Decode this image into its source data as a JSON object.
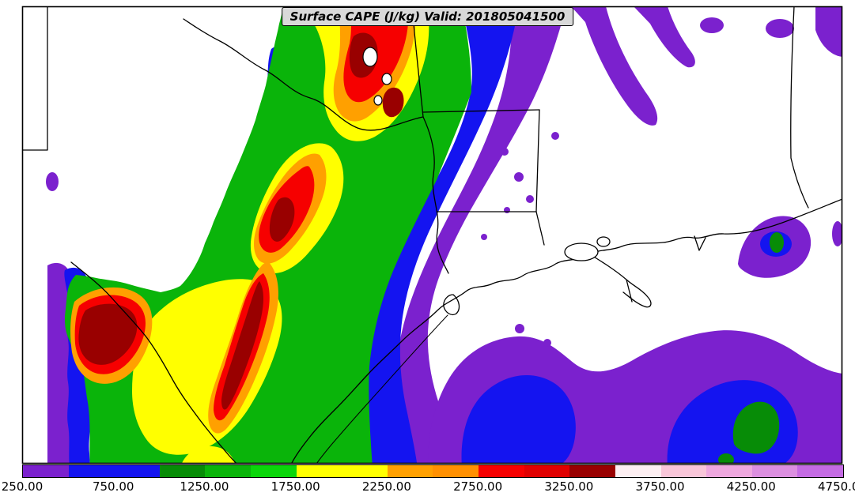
{
  "title": {
    "text": "Surface CAPE (J/kg) Valid: 201805041500"
  },
  "colorbar": {
    "min": 250,
    "max": 4750,
    "tick_step": 500,
    "level_step": 250,
    "tick_labels": [
      "250.00",
      "750.00",
      "1250.00",
      "1750.00",
      "2250.00",
      "2750.00",
      "3250.00",
      "3750.00",
      "4250.00",
      "4750.00"
    ],
    "levels": [
      {
        "value": 250,
        "color": "#7B21CE"
      },
      {
        "value": 500,
        "color": "#1414F0"
      },
      {
        "value": 750,
        "color": "#1414F0"
      },
      {
        "value": 1000,
        "color": "#078C07"
      },
      {
        "value": 1250,
        "color": "#0AB40A"
      },
      {
        "value": 1500,
        "color": "#0AD60A"
      },
      {
        "value": 1750,
        "color": "#FFFF00"
      },
      {
        "value": 2000,
        "color": "#FFFF00"
      },
      {
        "value": 2250,
        "color": "#FFA000"
      },
      {
        "value": 2500,
        "color": "#FF9000"
      },
      {
        "value": 2750,
        "color": "#F60000"
      },
      {
        "value": 3000,
        "color": "#E00000"
      },
      {
        "value": 3250,
        "color": "#990000"
      },
      {
        "value": 3500,
        "color": "#FDEFF2"
      },
      {
        "value": 3750,
        "color": "#F9C6D9"
      },
      {
        "value": 4000,
        "color": "#EFA8DF"
      },
      {
        "value": 4250,
        "color": "#DC8FE0"
      },
      {
        "value": 4500,
        "color": "#C46BE3"
      }
    ]
  },
  "chart_data": {
    "type": "heatmap",
    "title": "Surface CAPE (J/kg) Valid: 201805041500",
    "variable": "Surface CAPE",
    "units": "J/kg",
    "valid_time": "201805041500",
    "legend_position": "bottom",
    "colorbar_ticks": [
      250,
      750,
      1250,
      1750,
      2250,
      2750,
      3250,
      3750,
      4250,
      4750
    ],
    "contour_levels": [
      250,
      500,
      750,
      1000,
      1250,
      1500,
      1750,
      2000,
      2250,
      2500,
      2750,
      3000,
      3250,
      3500,
      3750,
      4000,
      4250,
      4500,
      4750
    ],
    "notes": "Filled CAPE contours over Texas, Louisiana, Mississippi and Alabama with the Gulf of Mexico. A broad instability band (500-3250+ J/kg) extends from Oklahoma southwest across central Texas to the coast; maxima above 3250 J/kg appear in west-central and southwest Texas; pockets of 250-1500 J/kg cover the Gulf and far northeast corner."
  }
}
